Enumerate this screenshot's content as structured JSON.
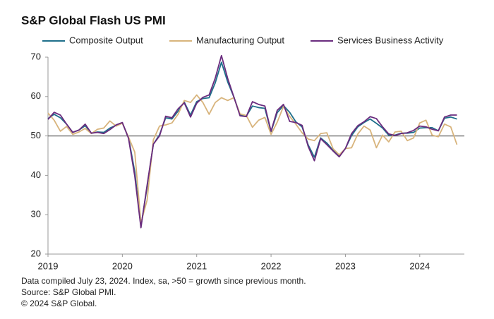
{
  "chart_data": {
    "type": "line",
    "title": "S&P Global Flash US PMI",
    "notes": [
      "Data compiled July 23, 2024. Index, sa, >50 = growth since previous month.",
      "Source: S&P Global PMI.",
      "© 2024 S&P Global."
    ],
    "x": [
      2019,
      2019.083,
      2019.167,
      2019.25,
      2019.333,
      2019.417,
      2019.5,
      2019.583,
      2019.667,
      2019.75,
      2019.833,
      2019.917,
      2020,
      2020.083,
      2020.167,
      2020.25,
      2020.333,
      2020.417,
      2020.5,
      2020.583,
      2020.667,
      2020.75,
      2020.833,
      2020.917,
      2021,
      2021.083,
      2021.167,
      2021.25,
      2021.333,
      2021.417,
      2021.5,
      2021.583,
      2021.667,
      2021.75,
      2021.833,
      2021.917,
      2022,
      2022.083,
      2022.167,
      2022.25,
      2022.333,
      2022.417,
      2022.5,
      2022.583,
      2022.667,
      2022.75,
      2022.833,
      2022.917,
      2023,
      2023.083,
      2023.167,
      2023.25,
      2023.333,
      2023.417,
      2023.5,
      2023.583,
      2023.667,
      2023.75,
      2023.833,
      2023.917,
      2024,
      2024.083,
      2024.167,
      2024.25,
      2024.333,
      2024.417,
      2024.5
    ],
    "series": [
      {
        "name": "Composite Output",
        "color": "#1f6f8b",
        "values": [
          54.4,
          55.5,
          54.6,
          53.0,
          50.9,
          51.5,
          52.6,
          50.7,
          51.0,
          50.9,
          52.0,
          52.7,
          53.3,
          49.6,
          40.9,
          27.0,
          37.0,
          47.9,
          50.3,
          54.6,
          54.3,
          56.3,
          58.6,
          55.3,
          58.7,
          59.5,
          59.7,
          63.5,
          68.7,
          63.7,
          59.9,
          55.4,
          55.0,
          57.6,
          57.2,
          57.0,
          51.1,
          55.9,
          57.7,
          56.0,
          53.6,
          52.3,
          47.7,
          44.6,
          49.5,
          48.2,
          46.4,
          45.0,
          46.8,
          50.1,
          52.3,
          53.4,
          54.3,
          53.2,
          52.0,
          50.2,
          50.2,
          50.7,
          50.7,
          50.9,
          52.0,
          52.1,
          52.1,
          51.3,
          54.5,
          54.8,
          54.3
        ]
      },
      {
        "name": "Manufacturing Output",
        "color": "#d8b47c",
        "values": [
          55.8,
          54.0,
          51.2,
          52.4,
          50.4,
          51.0,
          51.9,
          50.6,
          51.7,
          52.0,
          53.8,
          52.5,
          53.2,
          49.7,
          45.9,
          27.9,
          33.7,
          49.0,
          52.5,
          52.8,
          53.3,
          55.5,
          59.0,
          58.5,
          60.4,
          58.5,
          55.5,
          58.5,
          59.7,
          59.0,
          59.7,
          55.6,
          55.2,
          52.2,
          54.0,
          54.7,
          50.4,
          53.5,
          57.5,
          55.0,
          53.0,
          50.8,
          49.2,
          48.8,
          50.6,
          50.8,
          46.8,
          45.2,
          46.8,
          47.0,
          50.5,
          52.5,
          51.5,
          47.0,
          50.2,
          48.5,
          51.0,
          51.2,
          48.8,
          49.5,
          53.3,
          54.0,
          50.2,
          49.8,
          53.0,
          52.3,
          47.8
        ]
      },
      {
        "name": "Services Business Activity",
        "color": "#6a2c7e",
        "values": [
          54.2,
          56.0,
          55.3,
          53.0,
          50.9,
          51.5,
          53.0,
          50.7,
          50.9,
          50.6,
          51.6,
          52.8,
          53.4,
          49.4,
          39.8,
          26.7,
          37.5,
          47.9,
          50.0,
          55.0,
          54.6,
          56.9,
          58.4,
          54.8,
          58.3,
          59.8,
          60.4,
          64.7,
          70.4,
          64.6,
          59.9,
          55.1,
          54.9,
          58.7,
          58.0,
          57.6,
          51.2,
          56.5,
          58.0,
          53.7,
          53.4,
          52.7,
          47.3,
          43.7,
          49.3,
          47.8,
          46.2,
          44.7,
          46.8,
          50.6,
          52.6,
          53.6,
          54.9,
          54.4,
          52.3,
          50.5,
          50.1,
          50.6,
          50.8,
          51.4,
          52.5,
          52.3,
          51.7,
          51.3,
          54.8,
          55.3,
          55.3
        ]
      }
    ],
    "xlim": [
      2019,
      2024.6
    ],
    "xticks": [
      2019,
      2020,
      2021,
      2022,
      2023,
      2024
    ],
    "ylim": [
      20,
      70
    ],
    "yticks": [
      20,
      30,
      40,
      50,
      60,
      70
    ],
    "reference_line": 50,
    "grid": false,
    "legend": "top"
  }
}
